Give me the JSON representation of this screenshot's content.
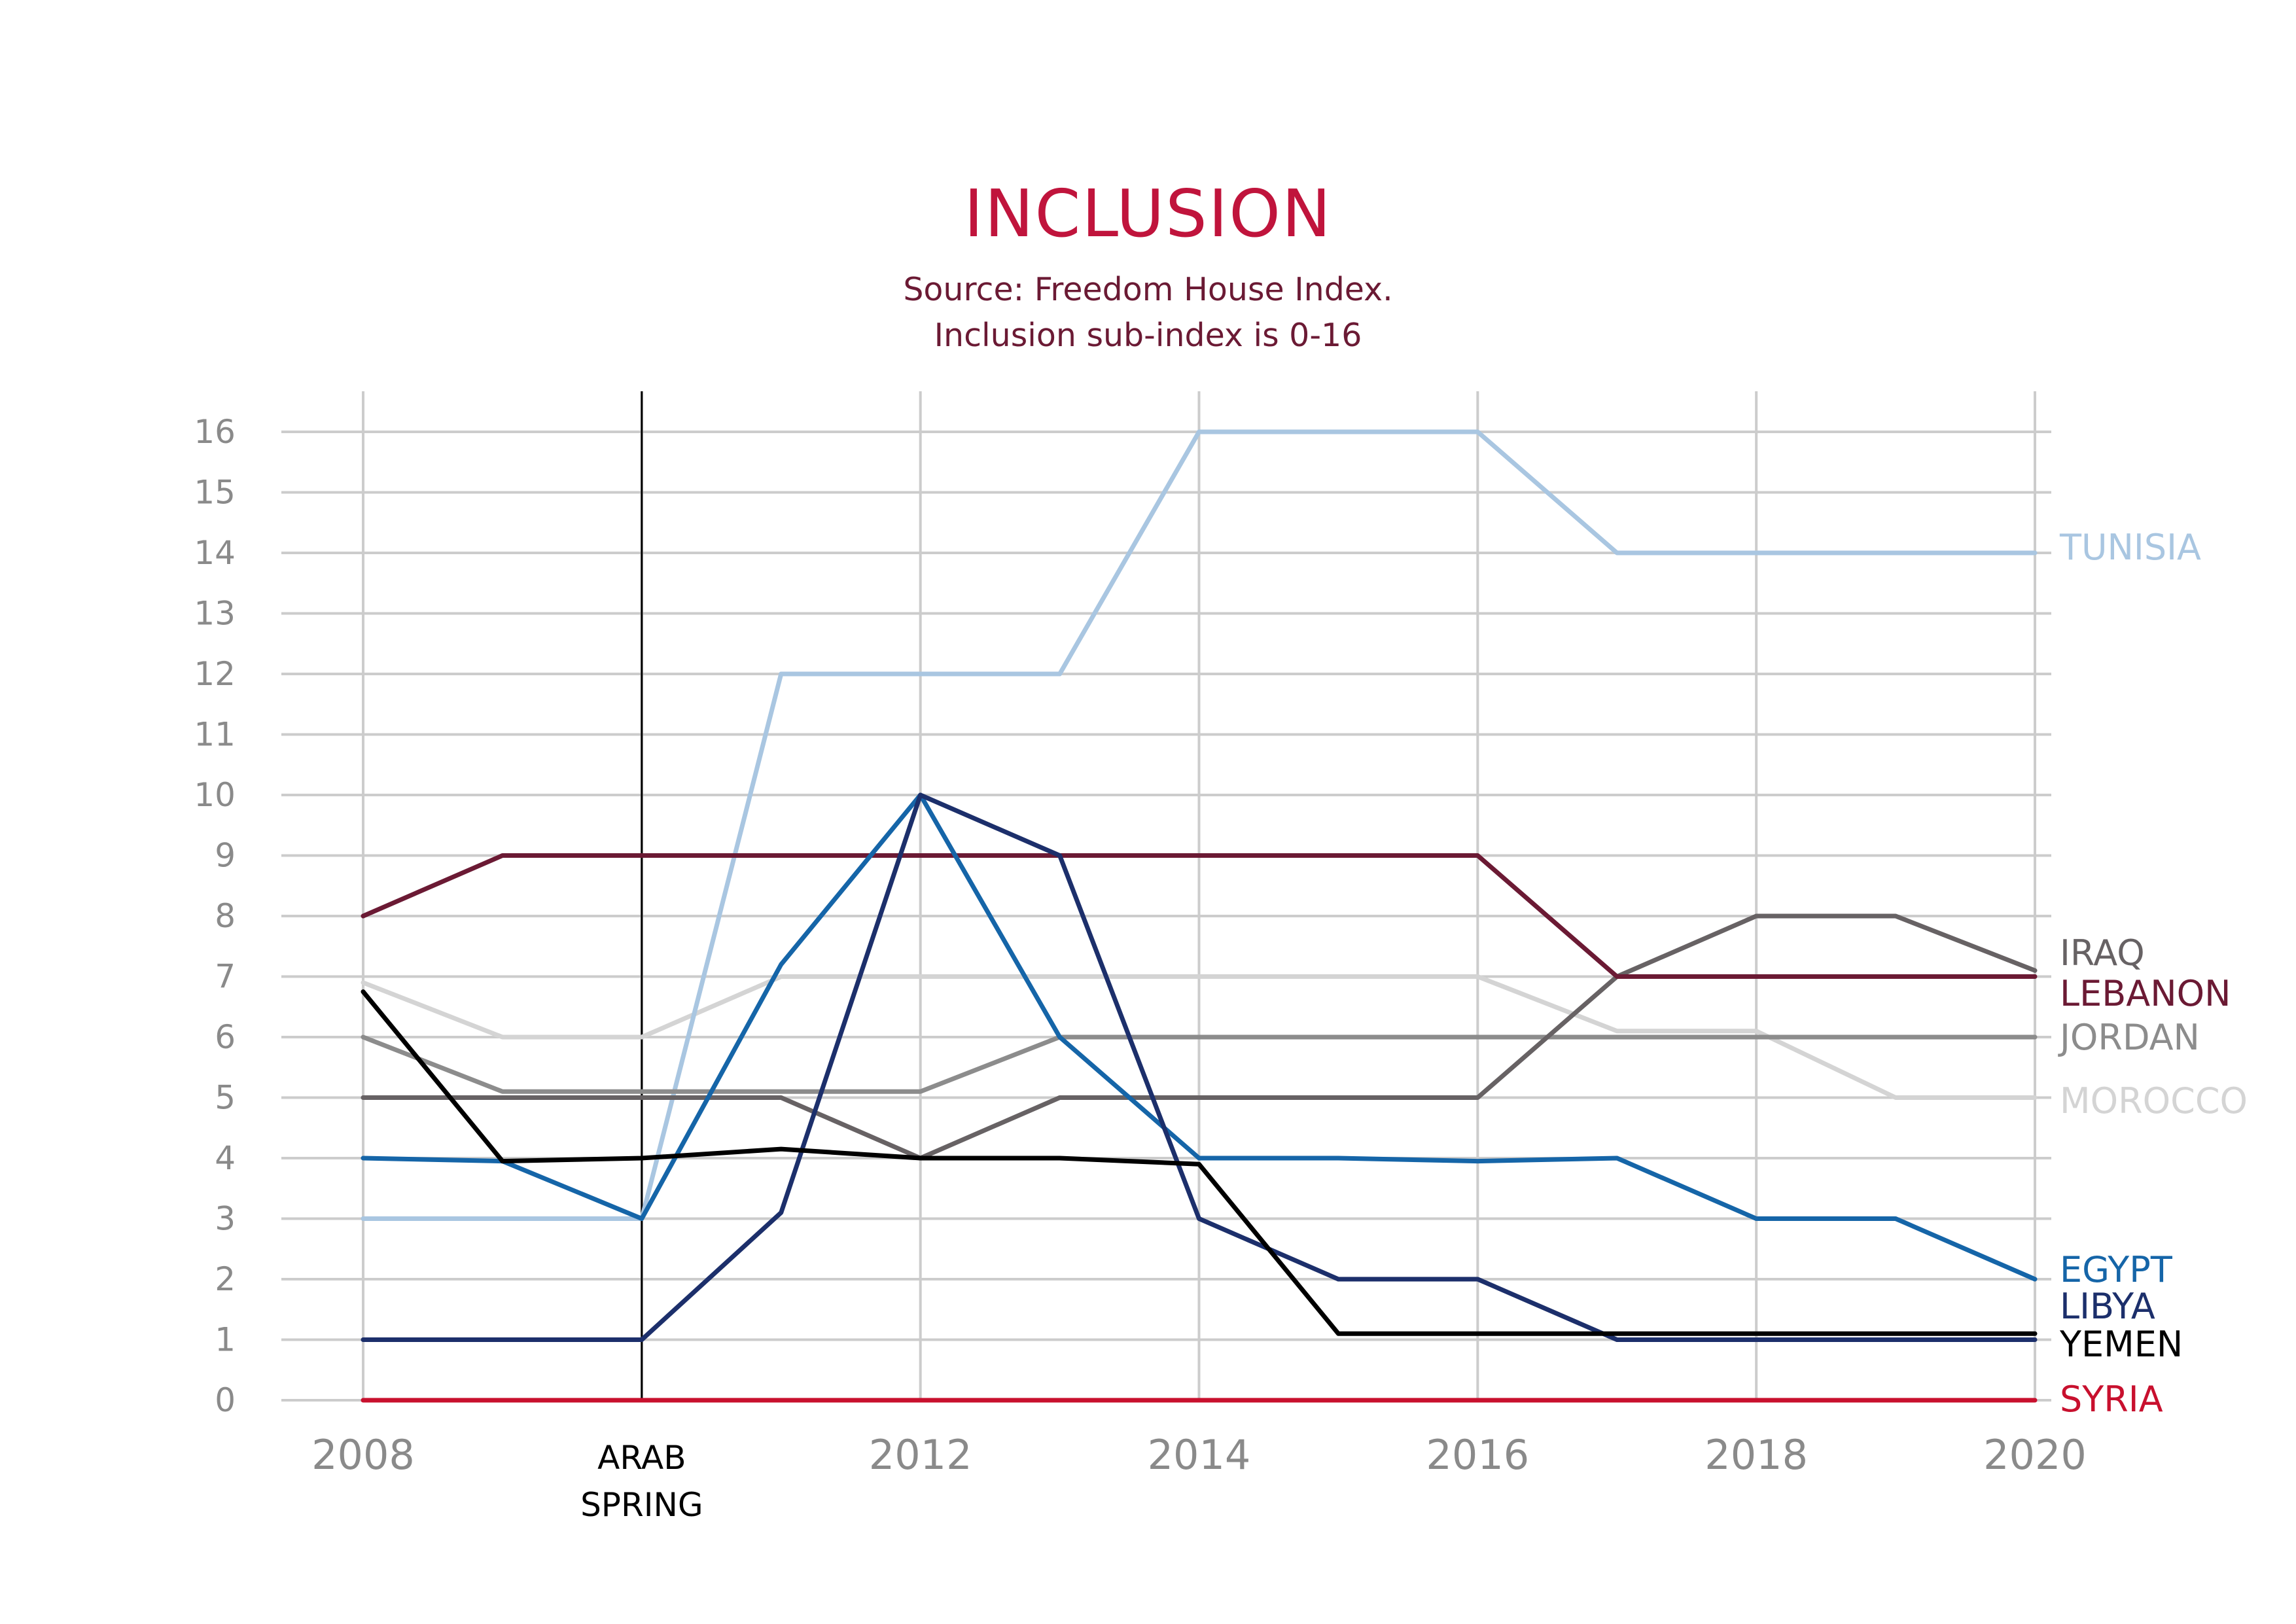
{
  "chart_data": {
    "type": "line",
    "title": "INCLUSION",
    "subtitle": [
      "Source: Freedom House Index.",
      "Inclusion sub-index is 0-16"
    ],
    "xlabel": "",
    "ylabel": "",
    "xlim": [
      2008,
      2020
    ],
    "ylim": [
      0,
      16
    ],
    "x_ticks": [
      "2008",
      "2012",
      "2014",
      "2016",
      "2018",
      "2020"
    ],
    "y_ticks": [
      "0",
      "1",
      "2",
      "3",
      "4",
      "5",
      "6",
      "7",
      "8",
      "9",
      "10",
      "11",
      "12",
      "13",
      "14",
      "15",
      "16"
    ],
    "grid": true,
    "annotation": {
      "x": 2010,
      "label": [
        "ARAB",
        "SPRING"
      ]
    },
    "x": [
      2008,
      2009,
      2010,
      2011,
      2012,
      2013,
      2014,
      2015,
      2016,
      2017,
      2018,
      2019,
      2020
    ],
    "series": [
      {
        "name": "SYRIA",
        "color": "#c8102e",
        "values": [
          0,
          0,
          0,
          0,
          0,
          0,
          0,
          0,
          0,
          0,
          0,
          0,
          0
        ]
      },
      {
        "name": "MOROCCO",
        "color": "#d4d4d4",
        "values": [
          6.9,
          6,
          6,
          7,
          7,
          7,
          7,
          7,
          7,
          6.1,
          6.1,
          5,
          5
        ]
      },
      {
        "name": "TUNISIA",
        "color": "#a9c6e1",
        "values": [
          3,
          3,
          3,
          12,
          12,
          12,
          16,
          16,
          16,
          14,
          14,
          14,
          14
        ]
      },
      {
        "name": "JORDAN",
        "color": "#8c8c8c",
        "values": [
          6,
          5.1,
          5.1,
          5.1,
          5.1,
          6,
          6,
          6,
          6,
          6,
          6,
          6,
          6
        ]
      },
      {
        "name": "IRAQ",
        "color": "#676264",
        "values": [
          5,
          5,
          5,
          5,
          4,
          5,
          5,
          5,
          5,
          7,
          8,
          8,
          7.1
        ]
      },
      {
        "name": "LEBANON",
        "color": "#6b1a34",
        "values": [
          8,
          9,
          9,
          9,
          9,
          9,
          9,
          9,
          9,
          7,
          7,
          7,
          7
        ]
      },
      {
        "name": "EGYPT",
        "color": "#1565a8",
        "values": [
          4,
          3.95,
          3,
          7.2,
          10,
          6,
          4,
          4,
          3.95,
          4,
          3,
          3,
          2
        ]
      },
      {
        "name": "LIBYA",
        "color": "#1c2f6b",
        "values": [
          1,
          1,
          1,
          3.1,
          10,
          9,
          3,
          2,
          2,
          1,
          1,
          1,
          1
        ]
      },
      {
        "name": "YEMEN",
        "color": "#000000",
        "values": [
          6.75,
          3.95,
          4,
          4.15,
          4,
          4,
          3.9,
          1.1,
          1.1,
          1.1,
          1.1,
          1.1,
          1.1
        ]
      }
    ]
  },
  "colors": {
    "title": "#c0143c",
    "subtitle": "#6b1a34",
    "grid": "#cccccc",
    "tick_text": "#8a8a8a",
    "annotation_line": "#000000",
    "annotation_text": "#000000"
  }
}
